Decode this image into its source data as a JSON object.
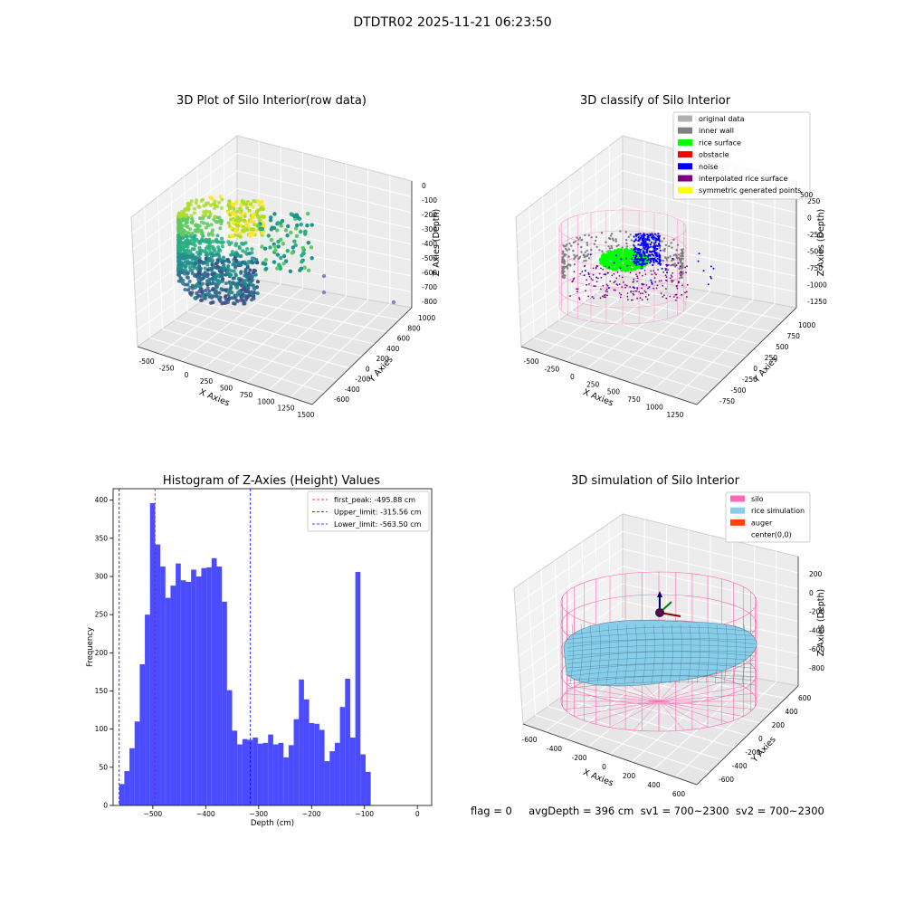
{
  "figure": {
    "suptitle": "DTDTR02 2025-11-21 06:23:50"
  },
  "panels": {
    "raw": {
      "title": "3D Plot of Silo Interior(row data)",
      "xlabel": "X Axies",
      "ylabel": "Y Axies",
      "zlabel": "Z Axies (Depth)",
      "xticks": [
        "-500",
        "-250",
        "0",
        "250",
        "500",
        "750",
        "1000",
        "1250",
        "1500"
      ],
      "yticks": [
        "-600",
        "-400",
        "-200",
        "0",
        "200",
        "400",
        "600",
        "800",
        "1000"
      ],
      "zticks": [
        "0",
        "-100",
        "-200",
        "-300",
        "-400",
        "-500",
        "-600",
        "-700",
        "-800"
      ]
    },
    "classify": {
      "title": "3D classify of Silo Interior",
      "xlabel": "X Axies",
      "ylabel": "Y Axies",
      "zlabel": "Z Axies (Depth)",
      "xticks": [
        "-500",
        "-250",
        "0",
        "250",
        "500",
        "750",
        "1000",
        "1250"
      ],
      "yticks": [
        "-750",
        "-500",
        "-250",
        "0",
        "250",
        "500",
        "750",
        "1000"
      ],
      "zticks": [
        "250",
        "0",
        "-250",
        "-500",
        "-750",
        "-1000",
        "-1250"
      ],
      "legend": [
        {
          "label": "original data",
          "color": "#b0b0b0"
        },
        {
          "label": "inner wall",
          "color": "#808080"
        },
        {
          "label": "rice surface",
          "color": "#00ff00"
        },
        {
          "label": "obstacle",
          "color": "#ff0000"
        },
        {
          "label": "noise",
          "color": "#0000ff"
        },
        {
          "label": "interpolated rice surface",
          "color": "#800080"
        },
        {
          "label": "symmetric generated points",
          "color": "#ffff00"
        }
      ],
      "zticks_partial_label": "500"
    },
    "simulation": {
      "title": "3D simulation of Silo Interior",
      "xlabel": "X Axies",
      "ylabel": "Y Axies",
      "zlabel": "Z Axies (Depth)",
      "xticks": [
        "-600",
        "-400",
        "-200",
        "0",
        "200",
        "400",
        "600"
      ],
      "yticks": [
        "-600",
        "-400",
        "-200",
        "0",
        "200",
        "400",
        "600"
      ],
      "zticks": [
        "200",
        "0",
        "-200",
        "-400",
        "-600",
        "-800"
      ],
      "legend": [
        {
          "label": "silo",
          "color": "#ff69b4"
        },
        {
          "label": "rice simulation",
          "color": "#87ceeb"
        },
        {
          "label": "auger",
          "color": "#ff4500"
        },
        {
          "label": "center(0,0)",
          "color": ""
        }
      ]
    }
  },
  "chart_data": {
    "type": "bar",
    "title": "Histogram of Z-Axies (Height) Values",
    "xlabel": "Depth (cm)",
    "ylabel": "Frequency",
    "xlim": [
      -575,
      27
    ],
    "ylim": [
      0,
      415
    ],
    "xticks": [
      -500,
      -400,
      -300,
      -200,
      -100,
      0
    ],
    "xtick_labels": [
      "−500",
      "−400",
      "−300",
      "−200",
      "−100",
      "0"
    ],
    "yticks": [
      0,
      50,
      100,
      150,
      200,
      250,
      300,
      350,
      400
    ],
    "bar_color": "#0000ff",
    "bin_start": -563.5,
    "bin_width": 9.7,
    "values": [
      28,
      45,
      75,
      110,
      185,
      250,
      396,
      342,
      313,
      272,
      288,
      317,
      295,
      293,
      309,
      300,
      311,
      312,
      324,
      313,
      267,
      151,
      98,
      80,
      87,
      86,
      89,
      81,
      82,
      93,
      80,
      82,
      63,
      79,
      113,
      165,
      139,
      108,
      107,
      99,
      58,
      71,
      82,
      129,
      166,
      89,
      306,
      67,
      44
    ],
    "reference_lines": [
      {
        "label": "first_peak: -495.88 cm",
        "value": -495.88,
        "color": "#ff0000"
      },
      {
        "label": "Upper_limit: -315.56 cm",
        "value": -315.56,
        "color": "#0000ff"
      },
      {
        "label": "Lower_limit: -563.50 cm",
        "value": -563.5,
        "color": "#0000ff"
      }
    ],
    "legend_position": "upper right"
  },
  "status": {
    "text": "flag = 0     avgDepth = 396 cm  sv1 = 700~2300  sv2 = 700~2300"
  }
}
